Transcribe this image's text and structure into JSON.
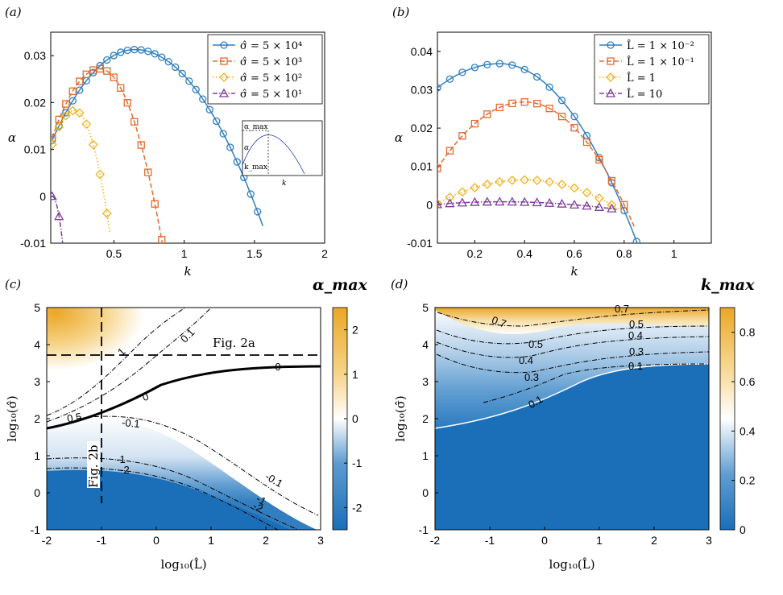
{
  "chart_data": [
    {
      "panel": "(a)",
      "type": "line",
      "xlabel": "k",
      "ylabel": "α",
      "xlim": [
        0.05,
        2
      ],
      "ylim": [
        -0.01,
        0.035
      ],
      "xticks": [
        0.5,
        1,
        1.5,
        2
      ],
      "xtick_labels": [
        "0.5",
        "1",
        "1.5",
        "2"
      ],
      "yticks": [
        -0.01,
        0,
        0.01,
        0.02,
        0.03
      ],
      "ytick_labels": [
        "-0.01",
        "0",
        "0.01",
        "0.02",
        "0.03"
      ],
      "legend_position": "top-right",
      "series": [
        {
          "name": "σ̂ = 5 × 10⁴",
          "color": "#2f7fc1",
          "marker": "circle",
          "dash": "solid",
          "k0": 0.06,
          "kmax": 0.65,
          "amax": 0.0313,
          "kc": 1.48,
          "xend": 1.56
        },
        {
          "name": "σ̂ = 5 × 10³",
          "color": "#e36a2c",
          "marker": "square",
          "dash": "dashed",
          "k0": 0.06,
          "kmax": 0.4,
          "amax": 0.0272,
          "kc": 0.78,
          "xend": 0.86
        },
        {
          "name": "σ̂ = 5 × 10²",
          "color": "#efb21d",
          "marker": "diamond",
          "dash": "dotted",
          "k0": 0.06,
          "kmax": 0.22,
          "amax": 0.0183,
          "kc": 0.43,
          "xend": 0.47
        },
        {
          "name": "σ̂ = 5 × 10¹",
          "color": "#7d3f99",
          "marker": "triangle",
          "dash": "dashdot",
          "k0": 0.06,
          "kmax": 0.06,
          "amax": 0.0,
          "kc": 0.06,
          "xend": 0.16
        }
      ],
      "inset": {
        "labels": [
          "α_max",
          "α",
          "k_max",
          "k"
        ]
      }
    },
    {
      "panel": "(b)",
      "type": "line",
      "xlabel": "k",
      "ylabel": "α",
      "xlim": [
        0.05,
        1.15
      ],
      "ylim": [
        -0.01,
        0.045
      ],
      "xticks": [
        0.2,
        0.4,
        0.6,
        0.8,
        1
      ],
      "xtick_labels": [
        "0.2",
        "0.4",
        "0.6",
        "0.8",
        "1"
      ],
      "yticks": [
        -0.01,
        0,
        0.01,
        0.02,
        0.03,
        0.04
      ],
      "ytick_labels": [
        "-0.01",
        "0",
        "0.01",
        "0.02",
        "0.03",
        "0.04"
      ],
      "legend_position": "top-right",
      "series": [
        {
          "name": "L̂ = 1 × 10⁻²",
          "color": "#2f7fc1",
          "marker": "circle",
          "dash": "solid",
          "k0": 0.05,
          "kmax": 0.3,
          "amax": 0.0368,
          "kc": 0.79,
          "xend": 0.88,
          "a0": 0.0305
        },
        {
          "name": "L̂ = 1 × 10⁻¹",
          "color": "#e36a2c",
          "marker": "square",
          "dash": "dashed",
          "k0": 0.05,
          "kmax": 0.4,
          "amax": 0.0268,
          "kc": 0.8,
          "xend": 0.84,
          "a0": 0.0095
        },
        {
          "name": "L̂ = 1",
          "color": "#efb21d",
          "marker": "diamond",
          "dash": "dotted",
          "k0": 0.05,
          "kmax": 0.4,
          "amax": 0.0065,
          "kc": 0.75,
          "xend": 0.79,
          "a0": 0.0003
        },
        {
          "name": "L̂ = 10",
          "color": "#7d3f99",
          "marker": "triangle",
          "dash": "dashdot",
          "k0": 0.05,
          "kmax": 0.3,
          "amax": 0.0008,
          "kc": 0.6,
          "xend": 0.77,
          "a0": 0.0001
        }
      ]
    },
    {
      "panel": "(c)",
      "type": "heatmap",
      "title": "α_max",
      "xlabel": "log₁₀(L̂)",
      "ylabel": "log₁₀(σ̂)",
      "xlim": [
        -2,
        3
      ],
      "ylim": [
        -1,
        5
      ],
      "xticks": [
        -2,
        -1,
        0,
        1,
        2,
        3
      ],
      "yticks": [
        -1,
        0,
        1,
        2,
        3,
        4,
        5
      ],
      "colorbar_ticks": [
        -2,
        -1,
        0,
        1,
        2
      ],
      "colorbar_range": [
        -2.5,
        2.5
      ],
      "contour_labels": [
        "1",
        "0.1",
        "0",
        "0",
        "0.5",
        "-0.1",
        "-1",
        "-2",
        "-0.1",
        "-1",
        "-2"
      ],
      "annotations": [
        "Fig. 2a",
        "Fig. 2b"
      ]
    },
    {
      "panel": "(d)",
      "type": "heatmap",
      "title": "k_max",
      "xlabel": "log₁₀(L̂)",
      "ylabel": "log₁₀(σ̂)",
      "xlim": [
        -2,
        3
      ],
      "ylim": [
        -1,
        5
      ],
      "xticks": [
        -2,
        -1,
        0,
        1,
        2,
        3
      ],
      "yticks": [
        -1,
        0,
        1,
        2,
        3,
        4,
        5
      ],
      "colorbar_ticks": [
        0,
        0.2,
        0.4,
        0.6,
        0.8
      ],
      "colorbar_range": [
        0,
        0.9
      ],
      "contour_labels": [
        "0.7",
        "0.7",
        "0.5",
        "0.5",
        "0.4",
        "0.4",
        "0.3",
        "0.3",
        "0.1",
        "0.1"
      ]
    }
  ],
  "tick_labels_common": [
    "-2",
    "-1",
    "0",
    "1",
    "2",
    "3",
    "4",
    "5"
  ],
  "labels": {
    "a": "(a)",
    "b": "(b)",
    "c": "(c)",
    "d": "(d)",
    "fig2a": "Fig. 2a",
    "fig2b": "Fig. 2b"
  }
}
